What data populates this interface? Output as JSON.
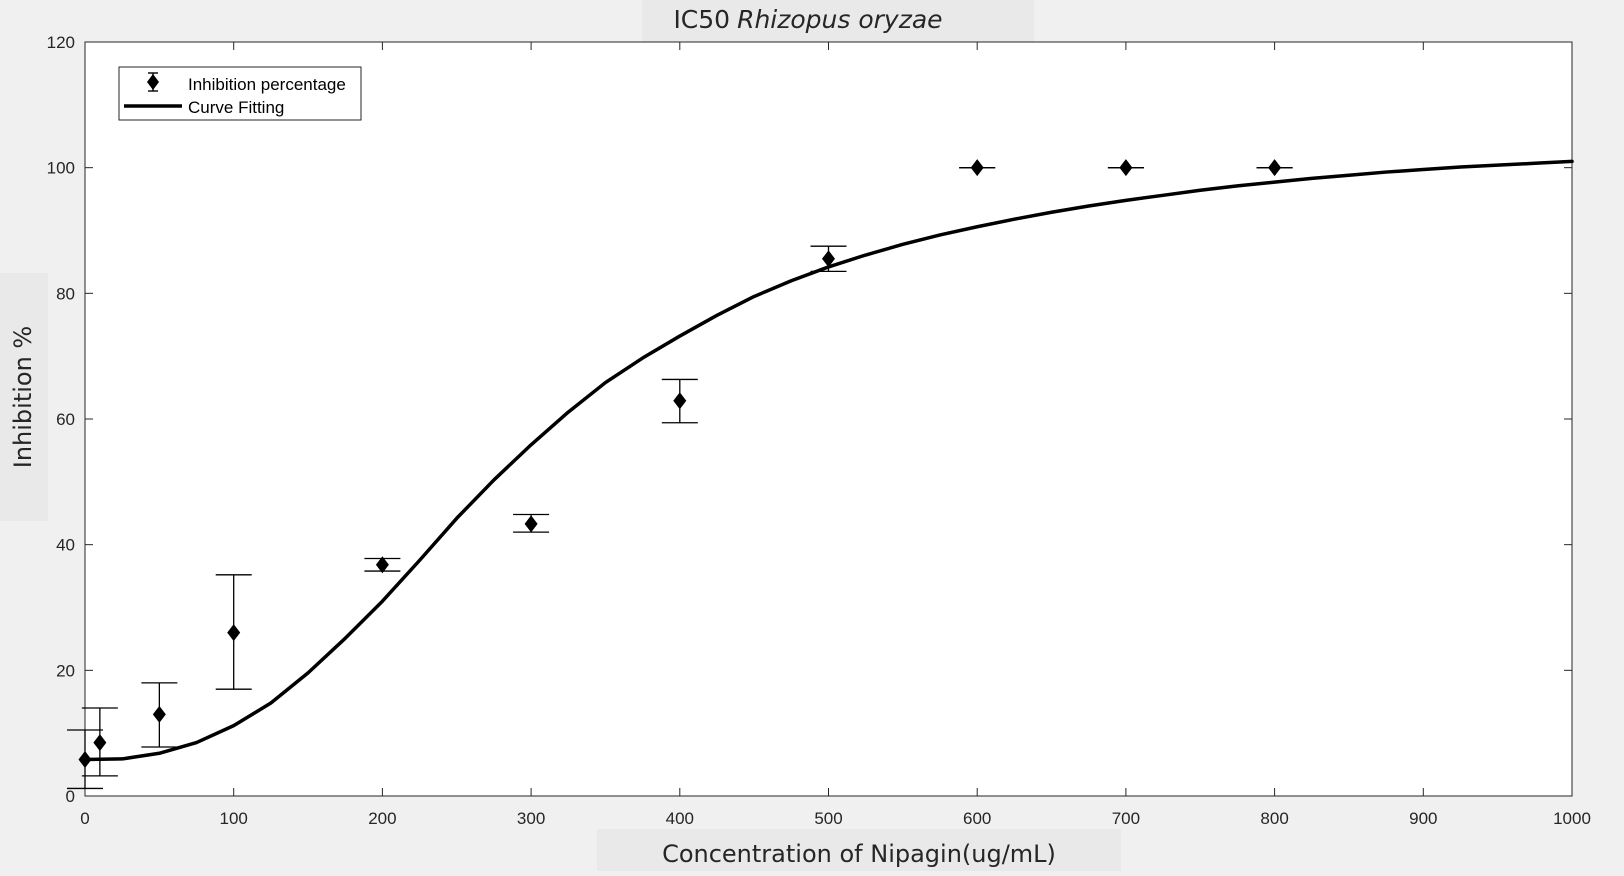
{
  "chart_data": {
    "type": "scatter",
    "title": "IC50",
    "title_italic": "Rhizopus oryzae",
    "xlabel": "Concentration of Nipagin(ug/mL)",
    "ylabel": "Inhibition %",
    "xlim": [
      0,
      1000
    ],
    "ylim": [
      0,
      120
    ],
    "xticks": [
      0,
      100,
      200,
      300,
      400,
      500,
      600,
      700,
      800,
      900,
      1000
    ],
    "yticks": [
      0,
      20,
      40,
      60,
      80,
      100,
      120
    ],
    "grid": false,
    "legend_position": "top-left",
    "series": [
      {
        "name": "Inhibition percentage",
        "kind": "errorbar-markers",
        "marker": "diamond",
        "color": "#000000",
        "points": [
          {
            "x": 0,
            "y": 5.8,
            "low": 1.2,
            "high": 10.5
          },
          {
            "x": 10,
            "y": 8.5,
            "low": 3.2,
            "high": 14.0
          },
          {
            "x": 50,
            "y": 13.0,
            "low": 7.8,
            "high": 18.0
          },
          {
            "x": 100,
            "y": 26.0,
            "low": 17.0,
            "high": 35.2
          },
          {
            "x": 200,
            "y": 36.8,
            "low": 35.8,
            "high": 37.8
          },
          {
            "x": 300,
            "y": 43.3,
            "low": 42.0,
            "high": 44.8
          },
          {
            "x": 400,
            "y": 62.9,
            "low": 59.4,
            "high": 66.3
          },
          {
            "x": 500,
            "y": 85.5,
            "low": 83.5,
            "high": 87.5
          },
          {
            "x": 600,
            "y": 100,
            "low": 100,
            "high": 100
          },
          {
            "x": 700,
            "y": 100,
            "low": 100,
            "high": 100
          },
          {
            "x": 800,
            "y": 100,
            "low": 100,
            "high": 100
          }
        ]
      },
      {
        "name": "Curve Fitting",
        "kind": "line",
        "color": "#000000",
        "x": [
          0,
          25,
          50,
          75,
          100,
          125,
          150,
          175,
          200,
          225,
          250,
          275,
          300,
          325,
          350,
          375,
          400,
          425,
          450,
          475,
          500,
          525,
          550,
          575,
          600,
          625,
          650,
          675,
          700,
          725,
          750,
          775,
          800,
          825,
          850,
          875,
          900,
          925,
          950,
          975,
          1000
        ],
        "y": [
          5.8,
          5.9,
          6.8,
          8.5,
          11.2,
          14.8,
          19.6,
          25.1,
          31.0,
          37.5,
          44.2,
          50.3,
          55.9,
          61.1,
          65.8,
          69.7,
          73.2,
          76.5,
          79.5,
          82.0,
          84.2,
          86.1,
          87.8,
          89.3,
          90.6,
          91.8,
          92.9,
          93.9,
          94.8,
          95.6,
          96.4,
          97.1,
          97.7,
          98.3,
          98.8,
          99.3,
          99.7,
          100.1,
          100.4,
          100.7,
          101.0
        ]
      }
    ]
  }
}
